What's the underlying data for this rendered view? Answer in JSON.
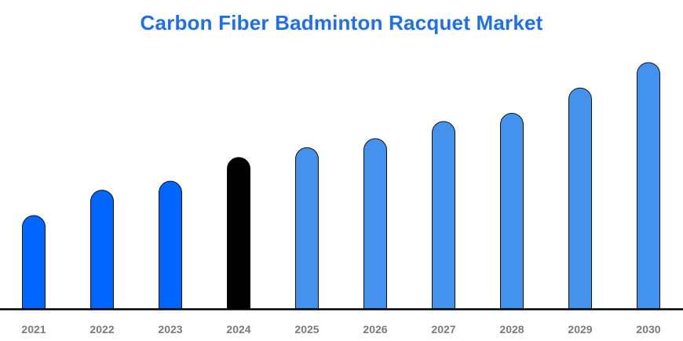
{
  "chart_data": {
    "type": "bar",
    "title": "Carbon Fiber Badminton Racquet Market",
    "xlabel": "",
    "ylabel": "",
    "categories": [
      "2021",
      "2022",
      "2023",
      "2024",
      "2025",
      "2026",
      "2027",
      "2028",
      "2029",
      "2030"
    ],
    "values": [
      114,
      145,
      156,
      185,
      197,
      208,
      229,
      239,
      270,
      301
    ],
    "ylim": [
      0,
      320
    ],
    "grid": false,
    "colors": {
      "title": "#1f6feb",
      "historical": "#0066ff",
      "base_year": "#000000",
      "forecast": "#4393ee",
      "axis": "#000000",
      "tick_label": "#7a7a7a"
    },
    "bar_color_groups": [
      "historical",
      "historical",
      "historical",
      "base_year",
      "forecast",
      "forecast",
      "forecast",
      "forecast",
      "forecast",
      "forecast"
    ]
  }
}
